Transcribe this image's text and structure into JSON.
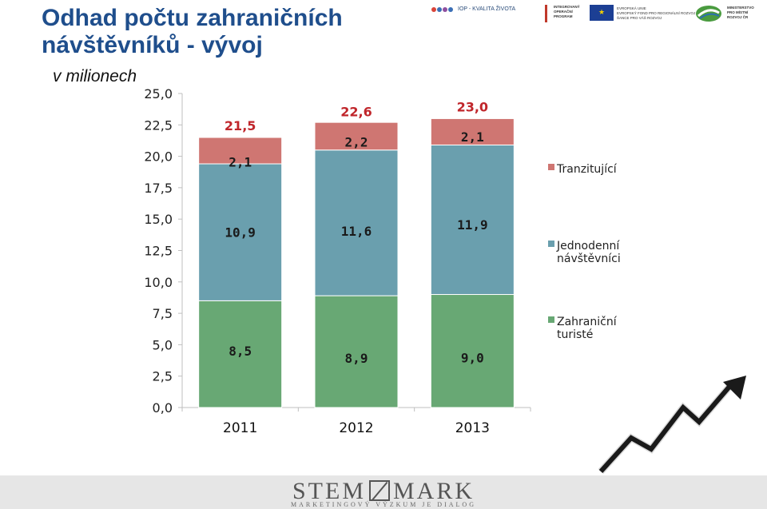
{
  "title_line1": "Odhad počtu zahraničních",
  "title_line2": "návštěvníků - vývoj",
  "unit_label": "v milionech",
  "logos": {
    "iop_text": "IOP - KVALITA ŽIVOTA",
    "ip_text": "INTEGROVANÝ OPERAČNÍ PROGRAM",
    "eu_text_lines": [
      "EVROPSKÁ UNIE",
      "EVROPSKÝ FOND PRO REGIONÁLNÍ ROZVOJ",
      "ŠANCE PRO VÁŠ ROZVOJ"
    ],
    "mmr_text_lines": [
      "MINISTERSTVO",
      "PRO MÍSTNÍ",
      "ROZVOJ ČR"
    ]
  },
  "footer": {
    "brand_left": "STEM",
    "brand_right": "MARK",
    "tagline": "MARKETINGOVÝ VÝZKUM JE DIALOG"
  },
  "colors": {
    "title": "#1f4e8c",
    "series_turiste": "#68a874",
    "series_jednodenni": "#6a9fae",
    "series_tranzit": "#cf7672",
    "total_label": "#c0262b",
    "arrow": "#1a1a1a"
  },
  "chart_data": {
    "type": "bar",
    "stacked": true,
    "categories": [
      "2011",
      "2012",
      "2013"
    ],
    "series": [
      {
        "name": "Zahraniční turisté",
        "values": [
          8.5,
          8.9,
          9.0
        ],
        "labels": [
          "8,5",
          "8,9",
          "9,0"
        ],
        "color": "#68a874"
      },
      {
        "name": "Jednodenní návštěvníci",
        "values": [
          10.9,
          11.6,
          11.9
        ],
        "labels": [
          "10,9",
          "11,6",
          "11,9"
        ],
        "color": "#6a9fae"
      },
      {
        "name": "Tranzitující",
        "values": [
          2.1,
          2.2,
          2.1
        ],
        "labels": [
          "2,1",
          "2,2",
          "2,1"
        ],
        "color": "#cf7672"
      }
    ],
    "totals": [
      21.5,
      22.6,
      23.0
    ],
    "total_labels": [
      "21,5",
      "22,6",
      "23,0"
    ],
    "ylim": [
      0,
      25
    ],
    "ytick_values": [
      0,
      2.5,
      5,
      7.5,
      10,
      12.5,
      15,
      17.5,
      20,
      22.5,
      25
    ],
    "ytick_labels": [
      "0,0",
      "2,5",
      "5,0",
      "7,5",
      "10,0",
      "12,5",
      "15,0",
      "17,5",
      "20,0",
      "22,5",
      "25,0"
    ],
    "legend": {
      "placement": "right",
      "entries": [
        {
          "series": "Tranzitující",
          "lines": [
            "Tranzitující"
          ]
        },
        {
          "series": "Jednodenní návštěvníci",
          "lines": [
            "Jednodenní",
            "návštěvníci"
          ]
        },
        {
          "series": "Zahraniční turisté",
          "lines": [
            "Zahraniční",
            "turisté"
          ]
        }
      ]
    },
    "grid": false
  }
}
